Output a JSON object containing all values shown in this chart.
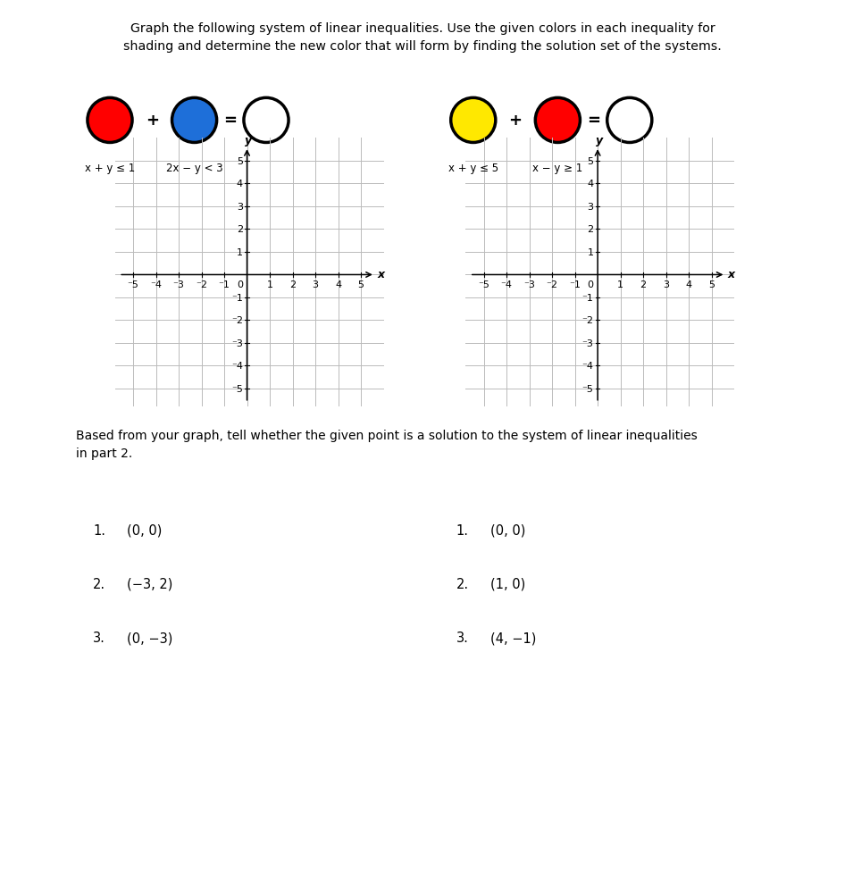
{
  "title_text": "Graph the following system of linear inequalities. Use the given colors in each inequality for\nshading and determine the new color that will form by finding the solution set of the systems.",
  "system1": {
    "ineq1_label": "x + y ≤ 1",
    "ineq2_label": "2x − y < 3",
    "circle1_color": "#FF0000",
    "circle2_color": "#1E6FD9",
    "circle3_color": "#FFFFFF"
  },
  "system2": {
    "ineq1_label": "x + y ≤ 5",
    "ineq2_label": "x − y ≥ 1",
    "circle1_color": "#FFE800",
    "circle2_color": "#FF0000",
    "circle3_color": "#FFFFFF"
  },
  "grid_range": [
    -5,
    5
  ],
  "bottom_text": "Based from your graph, tell whether the given point is a solution to the system of linear inequalities\nin part 2.",
  "left_points_num": [
    "1.",
    "2.",
    "3."
  ],
  "left_points_val": [
    "(0, 0)",
    "(−3, 2)",
    "(0, −3)"
  ],
  "right_points_num": [
    "1.",
    "2.",
    "3."
  ],
  "right_points_val": [
    "(0, 0)",
    "(1, 0)",
    "(4, −1)"
  ],
  "bg_color": "#FFFFFF",
  "grid_color": "#BBBBBB",
  "footer_bg": "#D0D8E8"
}
